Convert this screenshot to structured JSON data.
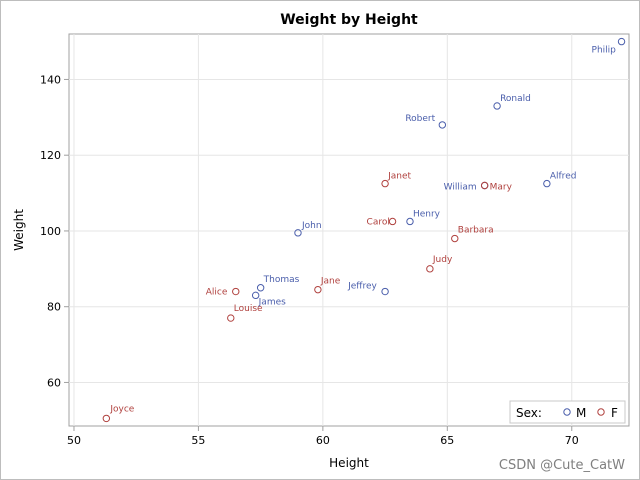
{
  "watermark": "CSDN @Cute_CatW",
  "colors": {
    "M": "#4a5eab",
    "F": "#b0413e",
    "grid": "#e6e6e6",
    "axis": "#a0a0a0"
  },
  "chart_data": {
    "type": "scatter",
    "title": "Weight by Height",
    "xlabel": "Height",
    "ylabel": "Weight",
    "xlim": [
      49.8,
      72.3
    ],
    "ylim": [
      48.5,
      152.0
    ],
    "xticks": [
      50,
      55,
      60,
      65,
      70
    ],
    "yticks": [
      60,
      80,
      100,
      120,
      140
    ],
    "grid": true,
    "legend": {
      "title": "Sex:",
      "placement": "bottom-right",
      "entries": [
        "M",
        "F"
      ]
    },
    "series": [
      {
        "name": "M",
        "points": [
          {
            "label": "Philip",
            "x": 72.0,
            "y": 150.0
          },
          {
            "label": "Ronald",
            "x": 67.0,
            "y": 133.0
          },
          {
            "label": "Robert",
            "x": 64.8,
            "y": 128.0
          },
          {
            "label": "William",
            "x": 66.5,
            "y": 112.0
          },
          {
            "label": "Alfred",
            "x": 69.0,
            "y": 112.5
          },
          {
            "label": "Henry",
            "x": 63.5,
            "y": 102.5
          },
          {
            "label": "John",
            "x": 59.0,
            "y": 99.5
          },
          {
            "label": "Thomas",
            "x": 57.5,
            "y": 85.0
          },
          {
            "label": "James",
            "x": 57.3,
            "y": 83.0
          },
          {
            "label": "Jeffrey",
            "x": 62.5,
            "y": 84.0
          }
        ]
      },
      {
        "name": "F",
        "points": [
          {
            "label": "Janet",
            "x": 62.5,
            "y": 112.5
          },
          {
            "label": "Mary",
            "x": 66.5,
            "y": 112.0
          },
          {
            "label": "Carol",
            "x": 62.8,
            "y": 102.5
          },
          {
            "label": "Barbara",
            "x": 65.3,
            "y": 98.0
          },
          {
            "label": "Judy",
            "x": 64.3,
            "y": 90.0
          },
          {
            "label": "Jane",
            "x": 59.8,
            "y": 84.5
          },
          {
            "label": "Alice",
            "x": 56.5,
            "y": 84.0
          },
          {
            "label": "Louise",
            "x": 56.3,
            "y": 77.0
          },
          {
            "label": "Joyce",
            "x": 51.3,
            "y": 50.5
          }
        ]
      }
    ]
  }
}
